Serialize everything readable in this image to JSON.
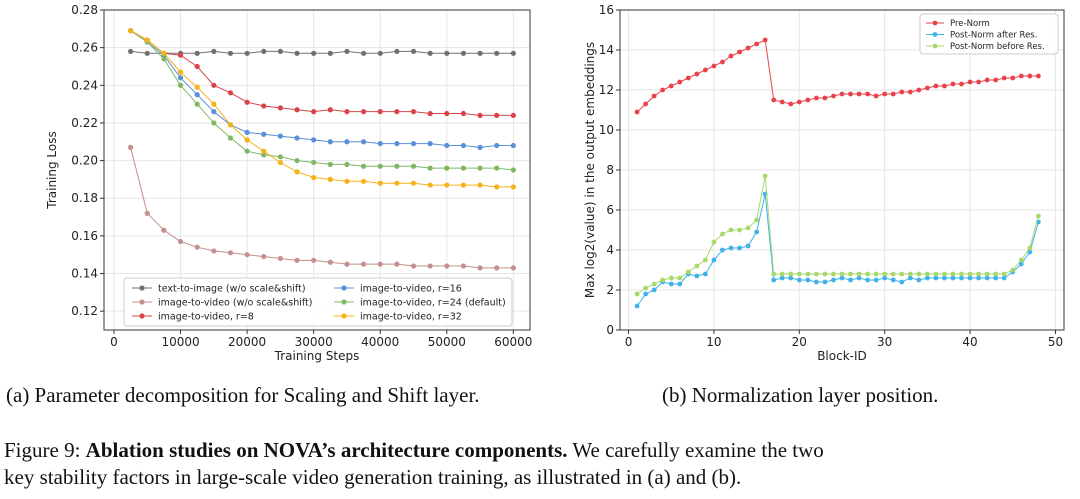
{
  "chart_data": [
    {
      "type": "line",
      "title": "",
      "xlabel": "Training Steps",
      "ylabel": "Training Loss",
      "xlim": [
        -1500,
        62500
      ],
      "ylim": [
        0.11,
        0.28
      ],
      "xticks": [
        0,
        10000,
        20000,
        30000,
        40000,
        50000,
        60000
      ],
      "yticks": [
        0.12,
        0.14,
        0.16,
        0.18,
        0.2,
        0.22,
        0.24,
        0.26,
        0.28
      ],
      "xticklabels": [
        "0",
        "10000",
        "20000",
        "30000",
        "40000",
        "50000",
        "60000"
      ],
      "yticklabels": [
        "0.12",
        "0.14",
        "0.16",
        "0.18",
        "0.20",
        "0.22",
        "0.24",
        "0.26",
        "0.28"
      ],
      "grid": true,
      "legend_position": "bottom",
      "series": [
        {
          "name": "text-to-image (w/o scale&shift)",
          "color": "#707070",
          "x": [
            2500,
            5000,
            7500,
            10000,
            12500,
            15000,
            17500,
            20000,
            22500,
            25000,
            27500,
            30000,
            32500,
            35000,
            37500,
            40000,
            42500,
            45000,
            47500,
            50000,
            52500,
            55000,
            57500,
            60000
          ],
          "values": [
            0.258,
            0.257,
            0.257,
            0.257,
            0.257,
            0.258,
            0.257,
            0.257,
            0.258,
            0.258,
            0.257,
            0.257,
            0.257,
            0.258,
            0.257,
            0.257,
            0.258,
            0.258,
            0.257,
            0.257,
            0.257,
            0.257,
            0.257,
            0.257
          ]
        },
        {
          "name": "image-to-video (w/o scale&shift)",
          "color": "#c48f8f",
          "x": [
            2500,
            5000,
            7500,
            10000,
            12500,
            15000,
            17500,
            20000,
            22500,
            25000,
            27500,
            30000,
            32500,
            35000,
            37500,
            40000,
            42500,
            45000,
            47500,
            50000,
            52500,
            55000,
            57500,
            60000
          ],
          "values": [
            0.207,
            0.172,
            0.163,
            0.157,
            0.154,
            0.152,
            0.151,
            0.15,
            0.149,
            0.148,
            0.147,
            0.147,
            0.146,
            0.145,
            0.145,
            0.145,
            0.145,
            0.144,
            0.144,
            0.144,
            0.144,
            0.143,
            0.143,
            0.143
          ]
        },
        {
          "name": "image-to-video, r=8",
          "color": "#d9434b",
          "x": [
            2500,
            5000,
            7500,
            10000,
            12500,
            15000,
            17500,
            20000,
            22500,
            25000,
            27500,
            30000,
            32500,
            35000,
            37500,
            40000,
            42500,
            45000,
            47500,
            50000,
            52500,
            55000,
            57500,
            60000
          ],
          "values": [
            0.269,
            0.264,
            0.257,
            0.256,
            0.25,
            0.24,
            0.236,
            0.231,
            0.229,
            0.228,
            0.227,
            0.226,
            0.227,
            0.226,
            0.226,
            0.226,
            0.226,
            0.226,
            0.225,
            0.225,
            0.225,
            0.224,
            0.224,
            0.224
          ]
        },
        {
          "name": "image-to-video, r=16",
          "color": "#5b8fd8",
          "x": [
            2500,
            5000,
            7500,
            10000,
            12500,
            15000,
            17500,
            20000,
            22500,
            25000,
            27500,
            30000,
            32500,
            35000,
            37500,
            40000,
            42500,
            45000,
            47500,
            50000,
            52500,
            55000,
            57500,
            60000
          ],
          "values": [
            0.269,
            0.263,
            0.256,
            0.244,
            0.235,
            0.226,
            0.219,
            0.215,
            0.214,
            0.213,
            0.212,
            0.211,
            0.21,
            0.21,
            0.21,
            0.209,
            0.209,
            0.209,
            0.209,
            0.208,
            0.208,
            0.207,
            0.208,
            0.208
          ]
        },
        {
          "name": "image-to-video, r=24 (default)",
          "color": "#7fb865",
          "x": [
            2500,
            5000,
            7500,
            10000,
            12500,
            15000,
            17500,
            20000,
            22500,
            25000,
            27500,
            30000,
            32500,
            35000,
            37500,
            40000,
            42500,
            45000,
            47500,
            50000,
            52500,
            55000,
            57500,
            60000
          ],
          "values": [
            0.269,
            0.263,
            0.254,
            0.24,
            0.23,
            0.22,
            0.212,
            0.205,
            0.203,
            0.202,
            0.2,
            0.199,
            0.198,
            0.198,
            0.197,
            0.197,
            0.197,
            0.197,
            0.196,
            0.196,
            0.196,
            0.196,
            0.196,
            0.195
          ]
        },
        {
          "name": "image-to-video, r=32",
          "color": "#f5b21a",
          "x": [
            2500,
            5000,
            7500,
            10000,
            12500,
            15000,
            17500,
            20000,
            22500,
            25000,
            27500,
            30000,
            32500,
            35000,
            37500,
            40000,
            42500,
            45000,
            47500,
            50000,
            52500,
            55000,
            57500,
            60000
          ],
          "values": [
            0.269,
            0.264,
            0.257,
            0.247,
            0.239,
            0.23,
            0.219,
            0.211,
            0.205,
            0.199,
            0.194,
            0.191,
            0.19,
            0.189,
            0.189,
            0.188,
            0.188,
            0.188,
            0.187,
            0.187,
            0.187,
            0.187,
            0.186,
            0.186
          ]
        }
      ]
    },
    {
      "type": "line",
      "title": "",
      "xlabel": "Block-ID",
      "ylabel": "Max log2(value) in the output embeddings",
      "xlim": [
        -1,
        51
      ],
      "ylim": [
        0,
        16
      ],
      "xticks": [
        0,
        10,
        20,
        30,
        40,
        50
      ],
      "yticks": [
        0,
        2,
        4,
        6,
        8,
        10,
        12,
        14,
        16
      ],
      "xticklabels": [
        "0",
        "10",
        "20",
        "30",
        "40",
        "50"
      ],
      "yticklabels": [
        "0",
        "2",
        "4",
        "6",
        "8",
        "10",
        "12",
        "14",
        "16"
      ],
      "grid": true,
      "legend_position": "top-right",
      "series": [
        {
          "name": "Pre-Norm",
          "color": "#e8434b",
          "x": [
            1,
            2,
            3,
            4,
            5,
            6,
            7,
            8,
            9,
            10,
            11,
            12,
            13,
            14,
            15,
            16,
            17,
            18,
            19,
            20,
            21,
            22,
            23,
            24,
            25,
            26,
            27,
            28,
            29,
            30,
            31,
            32,
            33,
            34,
            35,
            36,
            37,
            38,
            39,
            40,
            41,
            42,
            43,
            44,
            45,
            46,
            47,
            48
          ],
          "values": [
            10.9,
            11.3,
            11.7,
            12.0,
            12.2,
            12.4,
            12.6,
            12.8,
            13.0,
            13.2,
            13.4,
            13.7,
            13.9,
            14.1,
            14.3,
            14.5,
            11.5,
            11.4,
            11.3,
            11.4,
            11.5,
            11.6,
            11.6,
            11.7,
            11.8,
            11.8,
            11.8,
            11.8,
            11.7,
            11.8,
            11.8,
            11.9,
            11.9,
            12.0,
            12.1,
            12.2,
            12.2,
            12.3,
            12.3,
            12.4,
            12.4,
            12.5,
            12.5,
            12.6,
            12.6,
            12.7,
            12.7,
            12.7
          ]
        },
        {
          "name": "Post-Norm after Res.",
          "color": "#3fb2ea",
          "x": [
            1,
            2,
            3,
            4,
            5,
            6,
            7,
            8,
            9,
            10,
            11,
            12,
            13,
            14,
            15,
            16,
            17,
            18,
            19,
            20,
            21,
            22,
            23,
            24,
            25,
            26,
            27,
            28,
            29,
            30,
            31,
            32,
            33,
            34,
            35,
            36,
            37,
            38,
            39,
            40,
            41,
            42,
            43,
            44,
            45,
            46,
            47,
            48
          ],
          "values": [
            1.2,
            1.8,
            2.0,
            2.4,
            2.3,
            2.3,
            2.8,
            2.7,
            2.8,
            3.5,
            4.0,
            4.1,
            4.1,
            4.2,
            4.9,
            6.8,
            2.5,
            2.6,
            2.6,
            2.5,
            2.5,
            2.4,
            2.4,
            2.5,
            2.6,
            2.5,
            2.6,
            2.5,
            2.5,
            2.6,
            2.5,
            2.4,
            2.6,
            2.5,
            2.6,
            2.6,
            2.6,
            2.6,
            2.6,
            2.6,
            2.6,
            2.6,
            2.6,
            2.6,
            2.9,
            3.3,
            3.9,
            5.4
          ]
        },
        {
          "name": "Post-Norm before Res.",
          "color": "#a6d96a",
          "x": [
            1,
            2,
            3,
            4,
            5,
            6,
            7,
            8,
            9,
            10,
            11,
            12,
            13,
            14,
            15,
            16,
            17,
            18,
            19,
            20,
            21,
            22,
            23,
            24,
            25,
            26,
            27,
            28,
            29,
            30,
            31,
            32,
            33,
            34,
            35,
            36,
            37,
            38,
            39,
            40,
            41,
            42,
            43,
            44,
            45,
            46,
            47,
            48
          ],
          "values": [
            1.8,
            2.1,
            2.3,
            2.5,
            2.6,
            2.6,
            2.9,
            3.2,
            3.5,
            4.4,
            4.8,
            5.0,
            5.0,
            5.1,
            5.5,
            7.7,
            2.8,
            2.8,
            2.8,
            2.8,
            2.8,
            2.8,
            2.8,
            2.8,
            2.8,
            2.8,
            2.8,
            2.8,
            2.8,
            2.8,
            2.8,
            2.8,
            2.8,
            2.8,
            2.8,
            2.8,
            2.8,
            2.8,
            2.8,
            2.8,
            2.8,
            2.8,
            2.8,
            2.8,
            3.0,
            3.5,
            4.1,
            5.7
          ]
        }
      ]
    }
  ],
  "captions": {
    "a": "(a) Parameter decomposition for Scaling and Shift layer.",
    "b": "(b) Normalization layer position.",
    "figure_label": "Figure 9: ",
    "figure_bold": "Ablation studies on NOVA’s architecture components.",
    "figure_rest_line1": " We carefully examine the two",
    "figure_line2": "key stability factors in large-scale video generation training, as illustrated in (a) and (b)."
  }
}
